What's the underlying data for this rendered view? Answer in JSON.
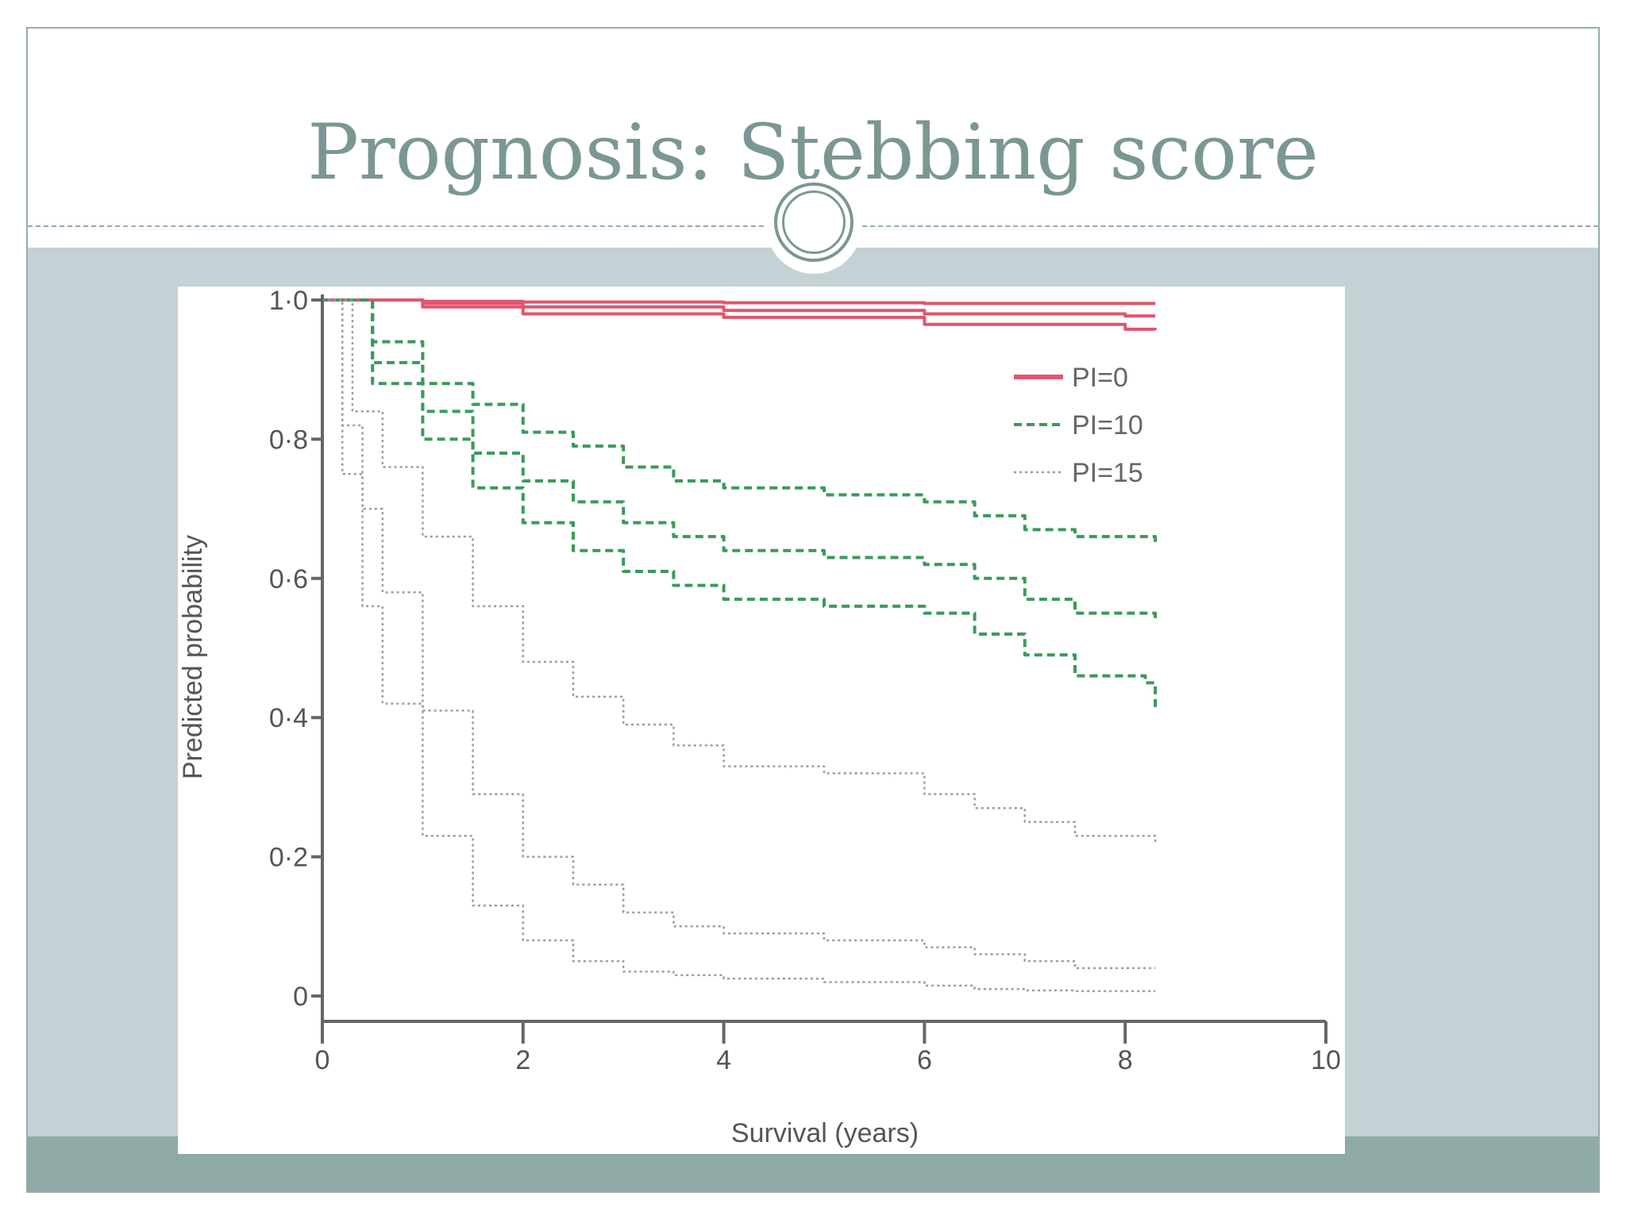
{
  "slide": {
    "title": "Prognosis: Stebbing score"
  },
  "colors": {
    "title": "#7b9793",
    "frame": "#93aeab",
    "content_band": "#c4d1d5",
    "footer_band": "#8fa9a6"
  },
  "chart_data": {
    "type": "line",
    "title": "",
    "xlabel": "Survival (years)",
    "ylabel": "Predicted probability",
    "xlim": [
      0,
      10
    ],
    "ylim": [
      0,
      1.0
    ],
    "x_ticks": [
      0,
      2,
      4,
      6,
      8,
      10
    ],
    "x_tick_labels": [
      "0",
      "2",
      "4",
      "6",
      "8",
      "10"
    ],
    "y_ticks": [
      0,
      0.2,
      0.4,
      0.6,
      0.8,
      1.0
    ],
    "y_tick_labels": [
      "0",
      "0·2",
      "0·4",
      "0·6",
      "0·8",
      "1·0"
    ],
    "grid": false,
    "legend_position": "top-right",
    "legend": [
      {
        "label": "PI=0",
        "style": "solid",
        "color": "#e0566e"
      },
      {
        "label": "PI=10",
        "style": "dashed",
        "color": "#3a9a5a"
      },
      {
        "label": "PI=15",
        "style": "dotted",
        "color": "#9a9aa8"
      }
    ],
    "series": [
      {
        "group": "PI=0",
        "style": "solid",
        "color": "#e0566e",
        "x": [
          0,
          1,
          2,
          4,
          6,
          8,
          8.3
        ],
        "y": [
          1.0,
          0.998,
          0.997,
          0.996,
          0.995,
          0.995,
          0.995
        ]
      },
      {
        "group": "PI=0",
        "style": "solid",
        "color": "#e0566e",
        "x": [
          0,
          1,
          2,
          4,
          6,
          8,
          8.3
        ],
        "y": [
          1.0,
          0.995,
          0.99,
          0.985,
          0.98,
          0.977,
          0.977
        ]
      },
      {
        "group": "PI=0",
        "style": "solid",
        "color": "#e0566e",
        "x": [
          0,
          1,
          2,
          4,
          6,
          8,
          8.3
        ],
        "y": [
          1.0,
          0.99,
          0.98,
          0.975,
          0.965,
          0.958,
          0.957
        ]
      },
      {
        "group": "PI=10",
        "style": "dashed",
        "color": "#3a9a5a",
        "x": [
          0,
          0.5,
          1,
          1.5,
          2,
          2.5,
          3,
          3.5,
          4,
          5,
          6,
          6.5,
          7,
          7.5,
          8,
          8.3
        ],
        "y": [
          1.0,
          0.94,
          0.88,
          0.85,
          0.81,
          0.79,
          0.76,
          0.74,
          0.73,
          0.72,
          0.71,
          0.69,
          0.67,
          0.66,
          0.66,
          0.65
        ]
      },
      {
        "group": "PI=10",
        "style": "dashed",
        "color": "#3a9a5a",
        "x": [
          0,
          0.5,
          1,
          1.5,
          2,
          2.5,
          3,
          3.5,
          4,
          5,
          6,
          6.5,
          7,
          7.5,
          8,
          8.3
        ],
        "y": [
          1.0,
          0.91,
          0.84,
          0.78,
          0.74,
          0.71,
          0.68,
          0.66,
          0.64,
          0.63,
          0.62,
          0.6,
          0.57,
          0.55,
          0.55,
          0.54
        ]
      },
      {
        "group": "PI=10",
        "style": "dashed",
        "color": "#3a9a5a",
        "x": [
          0,
          0.5,
          1,
          1.5,
          2,
          2.5,
          3,
          3.5,
          4,
          5,
          6,
          6.5,
          7,
          7.5,
          8,
          8.2,
          8.3
        ],
        "y": [
          1.0,
          0.88,
          0.8,
          0.73,
          0.68,
          0.64,
          0.61,
          0.59,
          0.57,
          0.56,
          0.55,
          0.52,
          0.49,
          0.46,
          0.46,
          0.45,
          0.41
        ]
      },
      {
        "group": "PI=15",
        "style": "dotted",
        "color": "#9a9aa8",
        "x": [
          0,
          0.3,
          0.6,
          1,
          1.5,
          2,
          2.5,
          3,
          3.5,
          4,
          5,
          6,
          6.5,
          7,
          7.5,
          8,
          8.3
        ],
        "y": [
          1.0,
          0.84,
          0.76,
          0.66,
          0.56,
          0.48,
          0.43,
          0.39,
          0.36,
          0.33,
          0.32,
          0.29,
          0.27,
          0.25,
          0.23,
          0.23,
          0.22
        ]
      },
      {
        "group": "PI=15",
        "style": "dotted",
        "color": "#9a9aa8",
        "x": [
          0,
          0.2,
          0.4,
          0.6,
          1,
          1.5,
          2,
          2.5,
          3,
          3.5,
          4,
          5,
          6,
          6.5,
          7,
          7.5,
          8,
          8.3
        ],
        "y": [
          1.0,
          0.82,
          0.7,
          0.58,
          0.41,
          0.29,
          0.2,
          0.16,
          0.12,
          0.1,
          0.09,
          0.08,
          0.07,
          0.06,
          0.05,
          0.04,
          0.04,
          0.04
        ]
      },
      {
        "group": "PI=15",
        "style": "dotted",
        "color": "#9a9aa8",
        "x": [
          0,
          0.2,
          0.4,
          0.6,
          1,
          1.5,
          2,
          2.5,
          3,
          3.5,
          4,
          5,
          6,
          6.5,
          7,
          7.5,
          8,
          8.3
        ],
        "y": [
          1.0,
          0.75,
          0.56,
          0.42,
          0.23,
          0.13,
          0.08,
          0.05,
          0.035,
          0.03,
          0.025,
          0.02,
          0.015,
          0.01,
          0.008,
          0.007,
          0.007,
          0.007
        ]
      }
    ]
  }
}
